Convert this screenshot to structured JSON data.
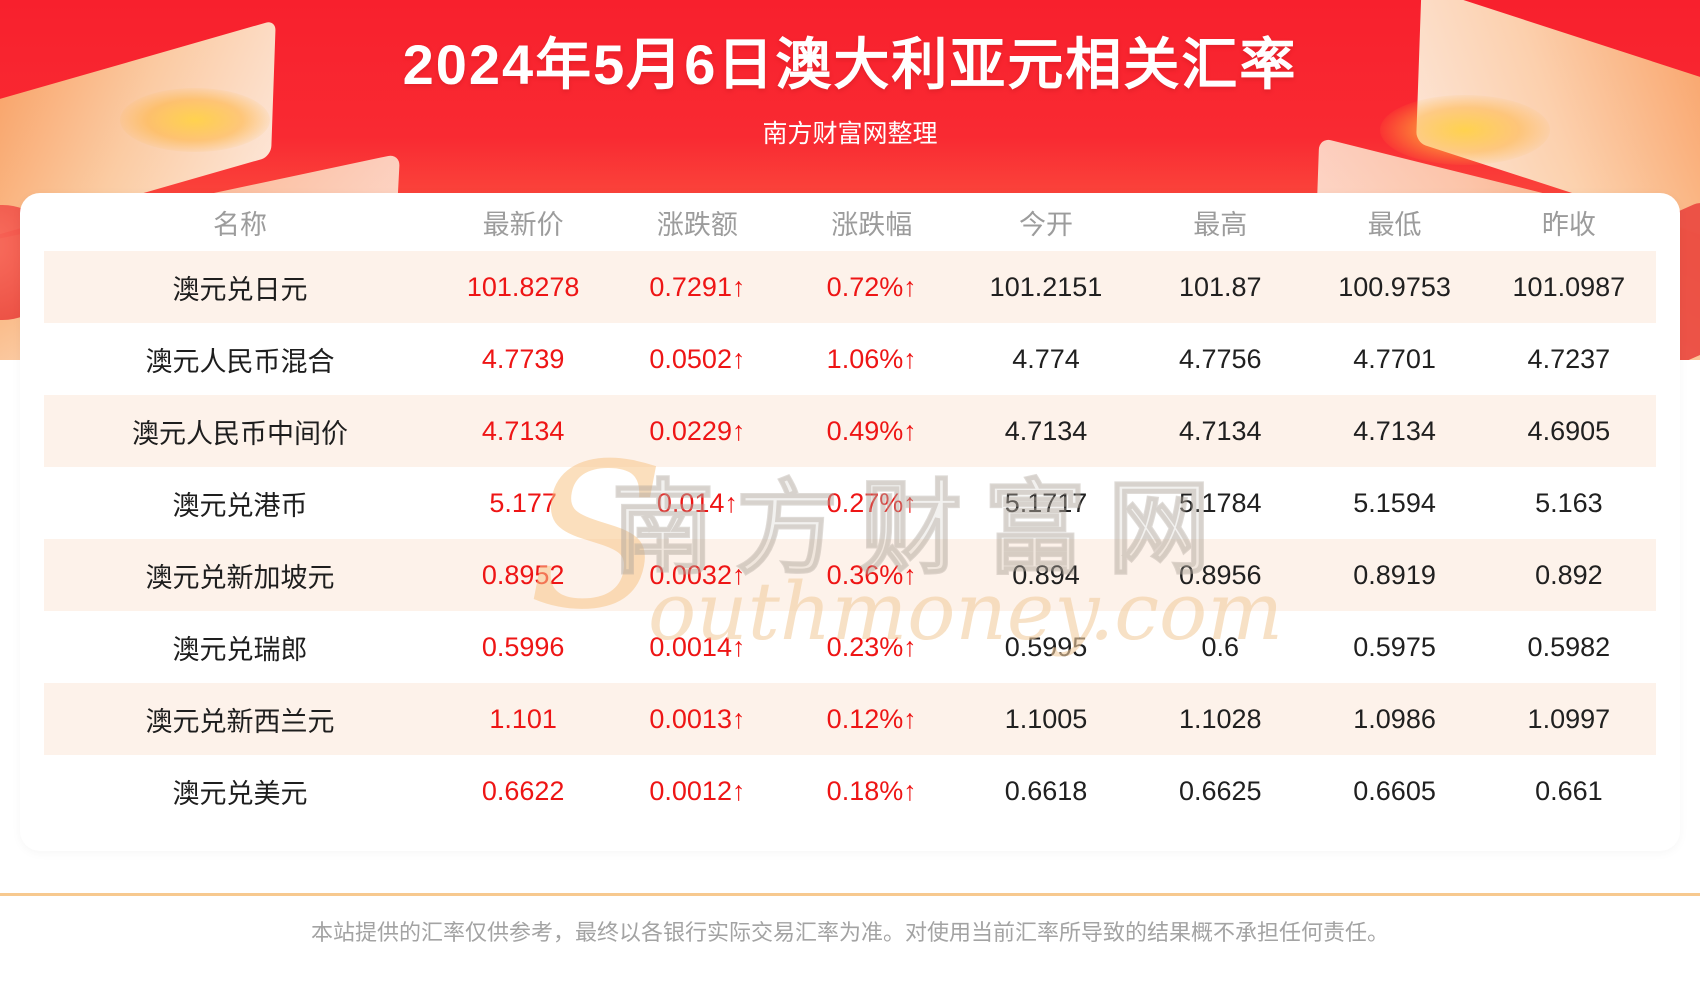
{
  "page": {
    "title": "2024年5月6日澳大利亚元相关汇率",
    "subtitle": "南方财富网整理"
  },
  "chart_data": {
    "type": "table",
    "title": "2024年5月6日澳大利亚元相关汇率",
    "source_note": "南方财富网整理",
    "columns": [
      "名称",
      "最新价",
      "涨跌额",
      "涨跌幅",
      "今开",
      "最高",
      "最低",
      "昨收"
    ],
    "fields": [
      "name",
      "latest",
      "change",
      "change_pct",
      "open",
      "high",
      "low",
      "prev_close"
    ],
    "red_fields": [
      "latest",
      "change",
      "change_pct"
    ],
    "rows": [
      {
        "name": "澳元兑日元",
        "latest": "101.8278",
        "change": "0.7291↑",
        "change_pct": "0.72%↑",
        "open": "101.2151",
        "high": "101.87",
        "low": "100.9753",
        "prev_close": "101.0987"
      },
      {
        "name": "澳元人民币混合",
        "latest": "4.7739",
        "change": "0.0502↑",
        "change_pct": "1.06%↑",
        "open": "4.774",
        "high": "4.7756",
        "low": "4.7701",
        "prev_close": "4.7237"
      },
      {
        "name": "澳元人民币中间价",
        "latest": "4.7134",
        "change": "0.0229↑",
        "change_pct": "0.49%↑",
        "open": "4.7134",
        "high": "4.7134",
        "low": "4.7134",
        "prev_close": "4.6905"
      },
      {
        "name": "澳元兑港币",
        "latest": "5.177",
        "change": "0.014↑",
        "change_pct": "0.27%↑",
        "open": "5.1717",
        "high": "5.1784",
        "low": "5.1594",
        "prev_close": "5.163"
      },
      {
        "name": "澳元兑新加坡元",
        "latest": "0.8952",
        "change": "0.0032↑",
        "change_pct": "0.36%↑",
        "open": "0.894",
        "high": "0.8956",
        "low": "0.8919",
        "prev_close": "0.892"
      },
      {
        "name": "澳元兑瑞郎",
        "latest": "0.5996",
        "change": "0.0014↑",
        "change_pct": "0.23%↑",
        "open": "0.5995",
        "high": "0.6",
        "low": "0.5975",
        "prev_close": "0.5982"
      },
      {
        "name": "澳元兑新西兰元",
        "latest": "1.101",
        "change": "0.0013↑",
        "change_pct": "0.12%↑",
        "open": "1.1005",
        "high": "1.1028",
        "low": "1.0986",
        "prev_close": "1.0997"
      },
      {
        "name": "澳元兑美元",
        "latest": "0.6622",
        "change": "0.0012↑",
        "change_pct": "0.18%↑",
        "open": "0.6618",
        "high": "0.6625",
        "low": "0.6605",
        "prev_close": "0.661"
      }
    ]
  },
  "watermark": {
    "s": "S",
    "cn": "南方财富网",
    "script": "outhmoney.com"
  },
  "footer": {
    "disclaimer": "本站提供的汇率仅供参考，最终以各银行实际交易汇率为准。对使用当前汇率所导致的结果概不承担任何责任。"
  },
  "colors": {
    "banner_red_top": "#f8202d",
    "banner_orange_bottom": "#fd9a63",
    "value_red": "#ee1515",
    "value_black": "#202020",
    "header_gray": "#9c9c9c",
    "stripe_beige": "#fdf2ea",
    "divider_orange": "#f7c98f"
  }
}
